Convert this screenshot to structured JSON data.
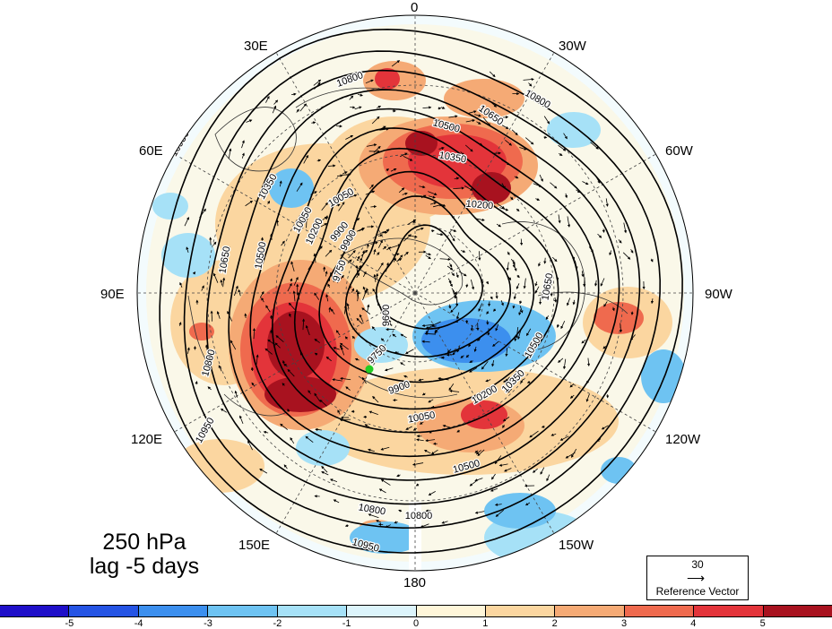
{
  "figure": {
    "level_label": "250 hPa",
    "lag_label": "lag -5 days"
  },
  "longitude_labels": {
    "lon_0": "0",
    "lon_30e": "30E",
    "lon_30w": "30W",
    "lon_60e": "60E",
    "lon_60w": "60W",
    "lon_90e": "90E",
    "lon_90w": "90W",
    "lon_120e": "120E",
    "lon_120w": "120W",
    "lon_150e": "150E",
    "lon_150w": "150W",
    "lon_180": "180"
  },
  "contour_labels": [
    "10800",
    "10650",
    "10500",
    "10350",
    "10200",
    "10050",
    "9900",
    "9750",
    "9600",
    "10800",
    "10650",
    "10500",
    "10350",
    "10200",
    "10050",
    "9900",
    "9750",
    "10950",
    "10950",
    "10800",
    "10650",
    "10500",
    "10350",
    "10200",
    "10050",
    "9900",
    "10800",
    "10950",
    "10800",
    "10500"
  ],
  "reference_vector": {
    "magnitude": "30",
    "label": "Reference Vector"
  },
  "colorbar": {
    "colors": [
      "#1f0fc9",
      "#2554e4",
      "#3c8fee",
      "#6ec3f2",
      "#a6e1f7",
      "#dcf4fb",
      "#fff6d9",
      "#fbd6a0",
      "#f5aa75",
      "#ef6a4e",
      "#e3343a",
      "#a8121f"
    ],
    "tick_labels": [
      "-5",
      "-4",
      "-3",
      "-2",
      "-1",
      "0",
      "1",
      "2",
      "3",
      "4",
      "5"
    ]
  },
  "map": {
    "projection": "north polar stereographic",
    "shading": "anomaly (colorbar units)",
    "contours": "geopotential height",
    "marker_color": "#22cc22",
    "anomaly_centers": [
      {
        "location": "northern Siberia / west of pole",
        "value": 5
      },
      {
        "location": "Scandinavia / Barents Sea",
        "value": 4
      },
      {
        "location": "North Pacific / Alaska side",
        "value": 4
      },
      {
        "location": "Greenland / north Atlantic",
        "value": 3
      },
      {
        "location": "Canada / Hudson Bay",
        "value": -2
      },
      {
        "location": "Kara Sea",
        "value": -1
      },
      {
        "location": "eastern North Pacific",
        "value": -2
      }
    ]
  }
}
